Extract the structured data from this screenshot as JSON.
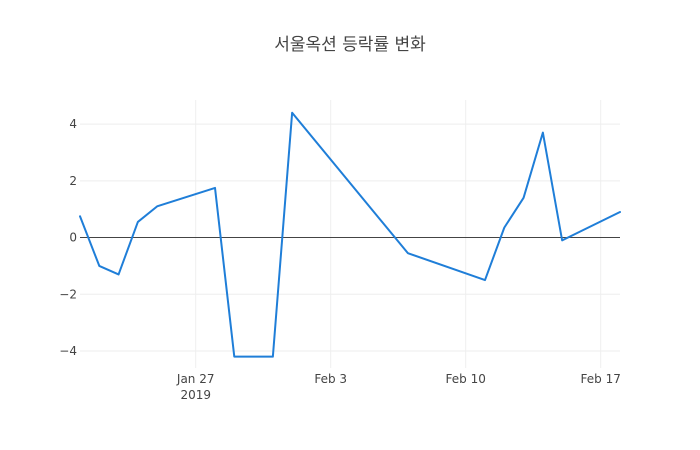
{
  "chart_data": {
    "type": "line",
    "title": "서울옥션 등락률 변화",
    "xlabel": "",
    "ylabel": "",
    "grid": true,
    "zero_line": true,
    "x_range": [
      "2019-01-21",
      "2019-02-18"
    ],
    "ylim": [
      -4.6,
      4.85
    ],
    "x_ticks": [
      {
        "date": "2019-01-27",
        "label": "Jan 27",
        "sublabel": "2019"
      },
      {
        "date": "2019-02-03",
        "label": "Feb 3",
        "sublabel": ""
      },
      {
        "date": "2019-02-10",
        "label": "Feb 10",
        "sublabel": ""
      },
      {
        "date": "2019-02-17",
        "label": "Feb 17",
        "sublabel": ""
      }
    ],
    "y_ticks": [
      {
        "value": 4,
        "label": "4"
      },
      {
        "value": 2,
        "label": "2"
      },
      {
        "value": 0,
        "label": "0"
      },
      {
        "value": -2,
        "label": "−2"
      },
      {
        "value": -4,
        "label": "−4"
      }
    ],
    "series": [
      {
        "color": "#1f7ed8",
        "points": [
          {
            "x": "2019-01-21",
            "y": 0.75
          },
          {
            "x": "2019-01-22",
            "y": -1.0
          },
          {
            "x": "2019-01-23",
            "y": -1.3
          },
          {
            "x": "2019-01-24",
            "y": 0.55
          },
          {
            "x": "2019-01-25",
            "y": 1.1
          },
          {
            "x": "2019-01-28",
            "y": 1.75
          },
          {
            "x": "2019-01-29",
            "y": -4.2
          },
          {
            "x": "2019-01-31",
            "y": -4.2
          },
          {
            "x": "2019-02-01",
            "y": 4.4
          },
          {
            "x": "2019-02-07",
            "y": -0.55
          },
          {
            "x": "2019-02-11",
            "y": -1.5
          },
          {
            "x": "2019-02-12",
            "y": 0.35
          },
          {
            "x": "2019-02-13",
            "y": 1.4
          },
          {
            "x": "2019-02-14",
            "y": 3.7
          },
          {
            "x": "2019-02-15",
            "y": -0.1
          },
          {
            "x": "2019-02-18",
            "y": 0.9
          }
        ]
      }
    ]
  }
}
